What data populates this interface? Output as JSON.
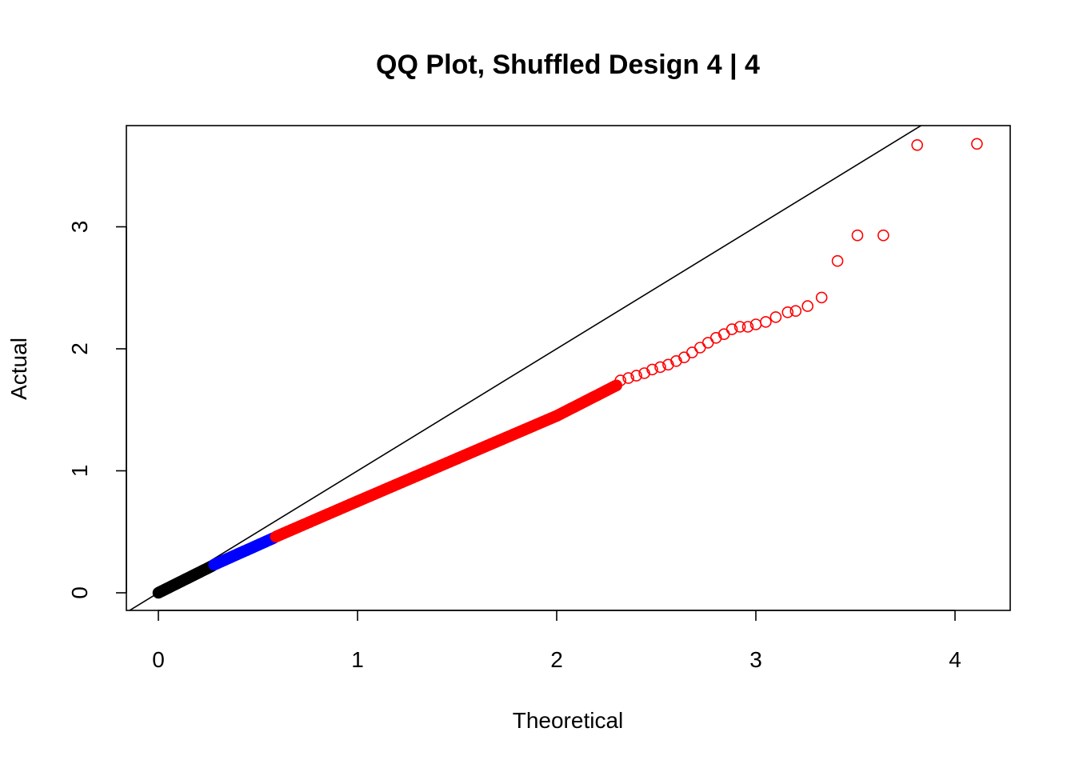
{
  "chart_data": {
    "type": "scatter",
    "title": "QQ Plot, Shuffled Design 4 | 4",
    "xlabel": "Theoretical",
    "ylabel": "Actual",
    "xlim": [
      -0.15,
      4.28
    ],
    "ylim": [
      -0.15,
      3.83
    ],
    "x_ticks": [
      "0",
      "1",
      "2",
      "3",
      "4"
    ],
    "y_ticks": [
      "0",
      "1",
      "2",
      "3"
    ],
    "grid": false,
    "reference_line": {
      "slope": 1,
      "intercept": 0,
      "color": "#000000"
    },
    "series": [
      {
        "color": "#000000",
        "marker": "filled-circle",
        "segments": [
          {
            "x_from": 0.0,
            "x_to": 0.27,
            "y_from": 0.0,
            "y_to": 0.22
          }
        ]
      },
      {
        "color": "#0000ff",
        "marker": "filled-circle",
        "segments": [
          {
            "x_from": 0.28,
            "x_to": 0.58,
            "y_from": 0.23,
            "y_to": 0.45
          }
        ]
      },
      {
        "color": "#ff0000",
        "marker": "filled-circle",
        "segments": [
          {
            "x_from": 0.59,
            "x_to": 1.0,
            "y_from": 0.46,
            "y_to": 0.75
          },
          {
            "x_from": 1.0,
            "x_to": 1.5,
            "y_from": 0.75,
            "y_to": 1.1
          },
          {
            "x_from": 1.5,
            "x_to": 2.0,
            "y_from": 1.1,
            "y_to": 1.45
          },
          {
            "x_from": 2.0,
            "x_to": 2.3,
            "y_from": 1.45,
            "y_to": 1.7
          }
        ]
      },
      {
        "color": "#ff0000",
        "marker": "open-circle",
        "points": [
          [
            2.32,
            1.74
          ],
          [
            2.36,
            1.76
          ],
          [
            2.4,
            1.78
          ],
          [
            2.44,
            1.8
          ],
          [
            2.48,
            1.83
          ],
          [
            2.52,
            1.85
          ],
          [
            2.56,
            1.87
          ],
          [
            2.6,
            1.9
          ],
          [
            2.64,
            1.93
          ],
          [
            2.68,
            1.97
          ],
          [
            2.72,
            2.01
          ],
          [
            2.76,
            2.05
          ],
          [
            2.8,
            2.09
          ],
          [
            2.84,
            2.12
          ],
          [
            2.88,
            2.16
          ],
          [
            2.92,
            2.18
          ],
          [
            2.96,
            2.18
          ],
          [
            3.0,
            2.2
          ],
          [
            3.05,
            2.22
          ],
          [
            3.1,
            2.26
          ],
          [
            3.16,
            2.3
          ],
          [
            3.2,
            2.31
          ],
          [
            3.26,
            2.35
          ],
          [
            3.33,
            2.42
          ],
          [
            3.41,
            2.72
          ],
          [
            3.51,
            2.93
          ],
          [
            3.64,
            2.93
          ],
          [
            3.81,
            3.67
          ],
          [
            4.11,
            3.68
          ]
        ]
      }
    ]
  }
}
